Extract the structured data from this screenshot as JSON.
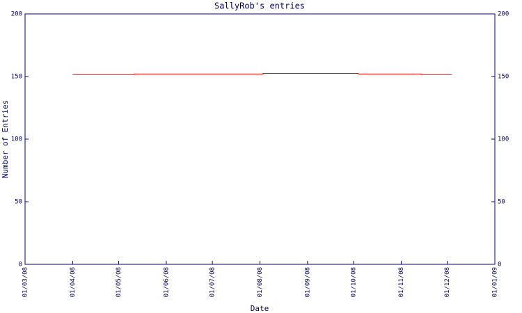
{
  "chart_data": {
    "type": "line",
    "title": "SallyRob's entries",
    "x_label": "Date",
    "y_label": "Number of Entries",
    "x": [
      "2008-04-01",
      "2008-05-11",
      "2008-05-11",
      "2008-08-03",
      "2008-08-03",
      "2008-10-04",
      "2008-10-04",
      "2008-11-14",
      "2008-11-14",
      "2008-12-04"
    ],
    "series": [
      {
        "color": "#ff0000",
        "values": [
          151.5,
          151.5,
          152,
          152,
          152.5,
          152.5,
          152,
          152,
          151.5,
          151.5
        ]
      }
    ],
    "xlim": [
      "2008-03-01",
      "2009-01-01"
    ],
    "xticks": [
      {
        "value": "2008-03-01",
        "label": "01/03/08"
      },
      {
        "value": "2008-04-01",
        "label": "01/04/08"
      },
      {
        "value": "2008-05-01",
        "label": "01/05/08"
      },
      {
        "value": "2008-06-01",
        "label": "01/06/08"
      },
      {
        "value": "2008-07-01",
        "label": "01/07/08"
      },
      {
        "value": "2008-08-01",
        "label": "01/08/08"
      },
      {
        "value": "2008-09-01",
        "label": "01/09/08"
      },
      {
        "value": "2008-10-01",
        "label": "01/10/08"
      },
      {
        "value": "2008-11-01",
        "label": "01/11/08"
      },
      {
        "value": "2008-12-01",
        "label": "01/12/08"
      },
      {
        "value": "2009-01-01",
        "label": "01/01/09"
      }
    ],
    "ylim": [
      0,
      200
    ],
    "yticks": [
      0,
      50,
      100,
      150,
      200
    ],
    "y2lim": [
      0,
      200
    ],
    "y2ticks": [
      0,
      50,
      100,
      150,
      200
    ],
    "axis_color": "#000080"
  }
}
